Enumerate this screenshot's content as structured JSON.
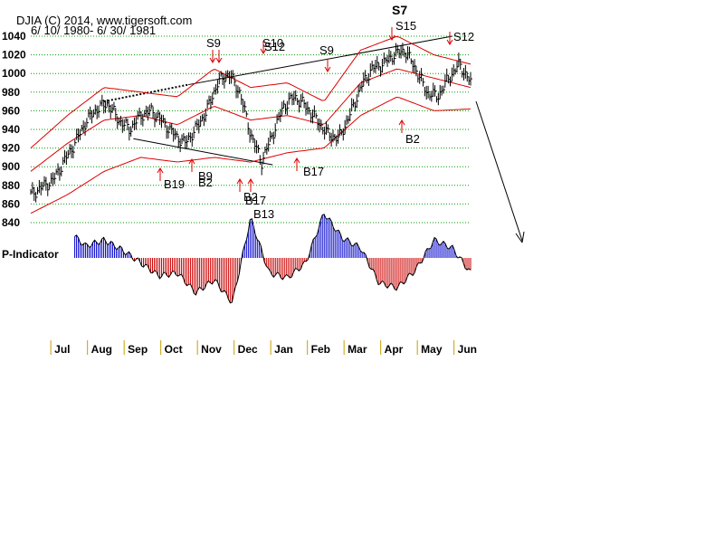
{
  "header": {
    "title": "DJIA   (C) 2014, www.tigersoft.com",
    "date_range": "6/ 10/ 1980- 6/ 30/ 1981"
  },
  "indicator_label": "P-Indicator",
  "colors": {
    "price": "#000000",
    "bands": "#dd0000",
    "grid": "#00a000",
    "signal_arrow": "#dd0000",
    "indicator_positive": "#0000cc",
    "indicator_negative": "#cc0000",
    "month_tick": "#c8a000"
  },
  "chart_data": {
    "type": "line",
    "title": "DJIA   (C) 2014, www.tigersoft.com",
    "subtitle": "6/ 10/ 1980- 6/ 30/ 1981",
    "ylim": [
      840,
      1040
    ],
    "yticks": [
      840,
      860,
      880,
      900,
      920,
      940,
      960,
      980,
      1000,
      1020,
      1040
    ],
    "grid": true,
    "months": [
      "Jul",
      "Aug",
      "Sep",
      "Oct",
      "Nov",
      "Dec",
      "Jan",
      "Feb",
      "Mar",
      "Apr",
      "May",
      "Jun"
    ],
    "price_series": {
      "x": [
        0,
        0.3,
        0.6,
        0.9,
        1.2,
        1.5,
        1.8,
        2.1,
        2.4,
        2.7,
        3.0,
        3.3,
        3.6,
        3.9,
        4.2,
        4.5,
        4.8,
        5.1,
        5.4,
        5.7,
        6.0,
        6.3,
        6.6,
        6.9,
        7.2,
        7.5,
        7.8,
        8.1,
        8.4,
        8.7,
        9.0,
        9.3,
        9.6,
        9.9,
        10.2,
        10.5,
        10.8,
        11.1,
        11.4,
        11.7,
        12.0
      ],
      "y": [
        870,
        878,
        885,
        905,
        925,
        948,
        962,
        968,
        950,
        940,
        955,
        960,
        948,
        935,
        925,
        940,
        960,
        990,
        1000,
        980,
        935,
        905,
        935,
        965,
        975,
        965,
        950,
        935,
        930,
        955,
        985,
        1005,
        1010,
        1020,
        1025,
        1005,
        980,
        975,
        995,
        1010,
        990
      ]
    },
    "upper_band": {
      "x": [
        0,
        1,
        2,
        3,
        4,
        5,
        6,
        7,
        8,
        9,
        10,
        11,
        12
      ],
      "y": [
        920,
        955,
        985,
        980,
        975,
        1005,
        985,
        990,
        970,
        1025,
        1040,
        1020,
        1010
      ]
    },
    "middle_band": {
      "x": [
        0,
        1,
        2,
        3,
        4,
        5,
        6,
        7,
        8,
        9,
        10,
        11,
        12
      ],
      "y": [
        895,
        925,
        950,
        955,
        945,
        965,
        950,
        955,
        945,
        990,
        1005,
        995,
        985
      ]
    },
    "lower_band": {
      "x": [
        0,
        1,
        2,
        3,
        4,
        5,
        6,
        7,
        8,
        9,
        10,
        11,
        12
      ],
      "y": [
        850,
        870,
        895,
        910,
        905,
        910,
        905,
        915,
        920,
        955,
        975,
        960,
        962
      ]
    },
    "p_indicator": {
      "x": [
        0,
        0.5,
        1.0,
        1.5,
        2.0,
        2.5,
        3.0,
        3.5,
        4.0,
        4.5,
        5.0,
        5.5,
        6.0,
        6.5,
        7.0,
        7.5,
        8.0,
        8.5,
        9.0,
        9.5,
        10.0,
        10.5,
        11.0,
        11.5,
        12.0
      ],
      "y": [
        30,
        38,
        28,
        12,
        18,
        8,
        -5,
        -18,
        -15,
        -35,
        -22,
        -45,
        40,
        -15,
        -20,
        -5,
        45,
        20,
        10,
        -25,
        -30,
        -12,
        18,
        10,
        -15
      ]
    },
    "annotations": [
      {
        "label": "S9",
        "type": "sell"
      },
      {
        "label": "S10",
        "type": "sell"
      },
      {
        "label": "S12",
        "type": "sell"
      },
      {
        "label": "S9",
        "type": "sell"
      },
      {
        "label": "S7",
        "type": "sell"
      },
      {
        "label": "S15",
        "type": "sell"
      },
      {
        "label": "S12",
        "type": "sell"
      },
      {
        "label": "B19",
        "type": "buy"
      },
      {
        "label": "B9",
        "type": "buy"
      },
      {
        "label": "B2",
        "type": "buy"
      },
      {
        "label": "B2",
        "type": "buy"
      },
      {
        "label": "B17",
        "type": "buy"
      },
      {
        "label": "B13",
        "type": "buy"
      },
      {
        "label": "B17",
        "type": "buy"
      },
      {
        "label": "B2",
        "type": "buy"
      }
    ]
  }
}
